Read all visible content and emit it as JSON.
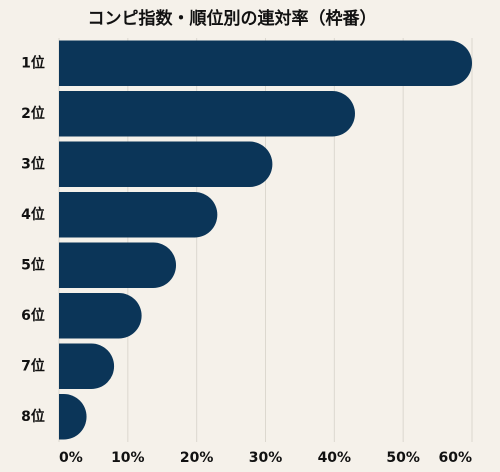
{
  "chart_data": {
    "type": "bar",
    "title": "コンピ指数・順位別の連対率（枠番）",
    "categories": [
      "1位",
      "2位",
      "3位",
      "4位",
      "5位",
      "6位",
      "7位",
      "8位"
    ],
    "values": [
      60,
      43,
      31,
      23,
      17,
      12,
      8,
      4
    ],
    "color": "#0b3558",
    "xlim": [
      0,
      60
    ],
    "xticks": [
      {
        "value": 0,
        "label": "0%"
      },
      {
        "value": 10,
        "label": "10%"
      },
      {
        "value": 20,
        "label": "20%"
      },
      {
        "value": 30,
        "label": "30%"
      },
      {
        "value": 40,
        "label": "40%"
      },
      {
        "value": 50,
        "label": "50%"
      },
      {
        "value": 60,
        "label": "60%"
      }
    ],
    "grid": true
  }
}
